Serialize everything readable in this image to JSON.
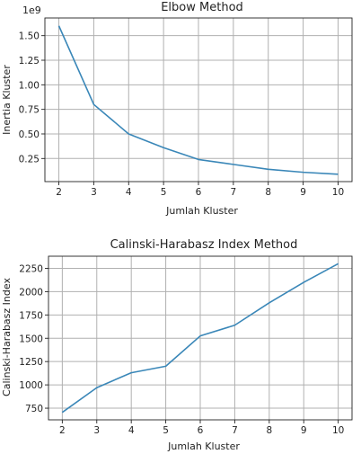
{
  "chart_data": [
    {
      "type": "line",
      "title": "Elbow Method",
      "xlabel": "Jumlah Kluster",
      "ylabel": "Inertia Kluster",
      "offset_text": "1e9",
      "x": [
        2,
        3,
        4,
        5,
        6,
        7,
        8,
        9,
        10
      ],
      "series": [
        {
          "values": [
            1.6,
            0.8,
            0.5,
            0.36,
            0.24,
            0.19,
            0.14,
            0.11,
            0.09
          ]
        }
      ],
      "xticks": [
        "2",
        "3",
        "4",
        "5",
        "6",
        "7",
        "8",
        "9",
        "10"
      ],
      "yticks": [
        "0.25",
        "0.50",
        "0.75",
        "1.00",
        "1.25",
        "1.50"
      ],
      "ytick_values": [
        0.25,
        0.5,
        0.75,
        1.0,
        1.25,
        1.5
      ],
      "xlim": [
        1.6,
        10.4
      ],
      "ylim": [
        0.015,
        1.68
      ],
      "grid": true,
      "color": "#3a87b8"
    },
    {
      "type": "line",
      "title": "Calinski-Harabasz Index Method",
      "xlabel": "Jumlah Kluster",
      "ylabel": "Calinski-Harabasz Index",
      "x": [
        2,
        3,
        4,
        5,
        6,
        7,
        8,
        9,
        10
      ],
      "series": [
        {
          "values": [
            705,
            970,
            1130,
            1200,
            1525,
            1640,
            1880,
            2100,
            2300
          ]
        }
      ],
      "xticks": [
        "2",
        "3",
        "4",
        "5",
        "6",
        "7",
        "8",
        "9",
        "10"
      ],
      "yticks": [
        "750",
        "1000",
        "1250",
        "1500",
        "1750",
        "2000",
        "2250"
      ],
      "ytick_values": [
        750,
        1000,
        1250,
        1500,
        1750,
        2000,
        2250
      ],
      "xlim": [
        1.6,
        10.4
      ],
      "ylim": [
        625,
        2380
      ],
      "grid": true,
      "color": "#3a87b8"
    }
  ]
}
